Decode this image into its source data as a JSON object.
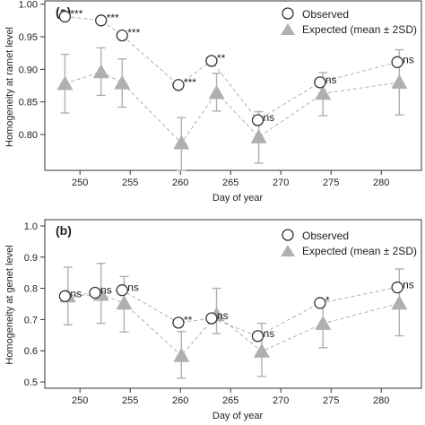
{
  "colors": {
    "observed_stroke": "#333333",
    "expected_fill": "#b0b0b0",
    "errorbar": "#b0b0b0",
    "observed_line": "#b0b0b0",
    "expected_line": "#b0b0b0",
    "axis": "#333333"
  },
  "chart_data": [
    {
      "type": "scatter",
      "panel_label": "(a)",
      "xlabel": "Day of year",
      "ylabel": "Homogeneity at ramet level",
      "xlim": [
        246.5,
        284
      ],
      "ylim": [
        0.745,
        1.005
      ],
      "xticks": [
        250,
        255,
        260,
        265,
        270,
        275,
        280
      ],
      "yticks": [
        0.8,
        0.85,
        0.9,
        0.95,
        1.0
      ],
      "legend": {
        "placement": "top-right",
        "observed": "Observed",
        "expected": "Expected (mean ± 2SD)"
      },
      "series": [
        {
          "name": "Observed",
          "x": [
            248.5,
            252.1,
            254.2,
            259.8,
            263.1,
            267.7,
            273.9,
            281.6
          ],
          "y": [
            0.981,
            0.975,
            0.952,
            0.876,
            0.913,
            0.822,
            0.88,
            0.911
          ],
          "labels": [
            "***",
            "***",
            "***",
            "***",
            "**",
            "ns",
            "ns",
            "ns"
          ]
        },
        {
          "name": "Expected (mean ± 2SD)",
          "x": [
            248.5,
            252.1,
            254.2,
            260.1,
            263.6,
            267.8,
            274.2,
            281.8
          ],
          "y": [
            0.878,
            0.896,
            0.879,
            0.787,
            0.864,
            0.796,
            0.863,
            0.88
          ],
          "lower": [
            0.833,
            0.86,
            0.842,
            0.745,
            0.836,
            0.756,
            0.829,
            0.83
          ],
          "upper": [
            0.923,
            0.933,
            0.916,
            0.826,
            0.894,
            0.835,
            0.895,
            0.93
          ]
        }
      ]
    },
    {
      "type": "scatter",
      "panel_label": "(b)",
      "xlabel": "Day of year",
      "ylabel": "Homogeneity at genet level",
      "xlim": [
        246.5,
        284
      ],
      "ylim": [
        0.48,
        1.02
      ],
      "xticks": [
        250,
        255,
        260,
        265,
        270,
        275,
        280
      ],
      "yticks": [
        0.5,
        0.6,
        0.7,
        0.8,
        0.9,
        1.0
      ],
      "legend": {
        "placement": "top-right",
        "observed": "Observed",
        "expected": "Expected (mean ± 2SD)"
      },
      "series": [
        {
          "name": "Observed",
          "x": [
            248.5,
            251.5,
            254.2,
            259.8,
            263.1,
            267.7,
            273.9,
            281.6
          ],
          "y": [
            0.775,
            0.786,
            0.794,
            0.69,
            0.704,
            0.647,
            0.753,
            0.803
          ],
          "labels": [
            "ns",
            "ns",
            "ns",
            "**",
            "ns",
            "ns",
            "*",
            "ns"
          ]
        },
        {
          "name": "Expected (mean ± 2SD)",
          "x": [
            248.8,
            252.1,
            254.4,
            260.1,
            263.6,
            268.1,
            274.2,
            281.8
          ],
          "y": [
            0.775,
            0.78,
            0.752,
            0.584,
            0.715,
            0.598,
            0.687,
            0.752
          ],
          "lower": [
            0.683,
            0.688,
            0.66,
            0.512,
            0.655,
            0.518,
            0.61,
            0.648
          ],
          "upper": [
            0.868,
            0.88,
            0.838,
            0.662,
            0.8,
            0.688,
            0.76,
            0.862
          ]
        }
      ]
    }
  ]
}
